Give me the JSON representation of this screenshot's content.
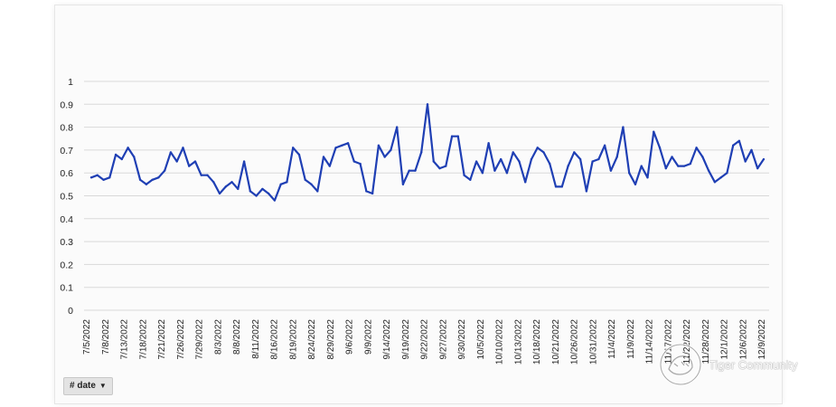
{
  "chart_data": {
    "type": "line",
    "title": "",
    "xlabel": "",
    "ylabel": "",
    "ylim": [
      0,
      1
    ],
    "yticks": [
      "0",
      "0.1",
      "0.2",
      "0.3",
      "0.4",
      "0.5",
      "0.6",
      "0.7",
      "0.8",
      "0.9",
      "1"
    ],
    "grid": true,
    "legend": "none",
    "line_color": "#1f3fb4",
    "x_tick_labels": [
      "7/5/2022",
      "7/8/2022",
      "7/13/2022",
      "7/18/2022",
      "7/21/2022",
      "7/26/2022",
      "7/29/2022",
      "8/3/2022",
      "8/8/2022",
      "8/11/2022",
      "8/16/2022",
      "8/19/2022",
      "8/24/2022",
      "8/29/2022",
      "9/6/2022",
      "9/9/2022",
      "9/14/2022",
      "9/19/2022",
      "9/22/2022",
      "9/27/2022",
      "9/30/2022",
      "10/5/2022",
      "10/10/2022",
      "10/13/2022",
      "10/18/2022",
      "10/21/2022",
      "10/26/2022",
      "10/31/2022",
      "11/4/2022",
      "11/9/2022",
      "11/14/2022",
      "11/17/2022",
      "11/22/2022",
      "11/28/2022",
      "12/1/2022",
      "12/6/2022",
      "12/9/2022"
    ],
    "values": [
      0.58,
      0.59,
      0.57,
      0.58,
      0.68,
      0.66,
      0.71,
      0.67,
      0.57,
      0.55,
      0.57,
      0.58,
      0.61,
      0.69,
      0.65,
      0.71,
      0.63,
      0.65,
      0.59,
      0.59,
      0.56,
      0.51,
      0.54,
      0.56,
      0.53,
      0.65,
      0.52,
      0.5,
      0.53,
      0.51,
      0.48,
      0.55,
      0.56,
      0.71,
      0.68,
      0.57,
      0.55,
      0.52,
      0.67,
      0.63,
      0.71,
      0.72,
      0.73,
      0.65,
      0.64,
      0.52,
      0.51,
      0.72,
      0.67,
      0.7,
      0.8,
      0.55,
      0.61,
      0.61,
      0.69,
      0.9,
      0.65,
      0.62,
      0.63,
      0.76,
      0.76,
      0.59,
      0.57,
      0.65,
      0.6,
      0.73,
      0.61,
      0.66,
      0.6,
      0.69,
      0.65,
      0.56,
      0.66,
      0.71,
      0.69,
      0.64,
      0.54,
      0.54,
      0.63,
      0.69,
      0.66,
      0.52,
      0.65,
      0.66,
      0.72,
      0.61,
      0.67,
      0.8,
      0.6,
      0.55,
      0.63,
      0.58,
      0.78,
      0.71,
      0.62,
      0.67,
      0.63,
      0.63,
      0.64,
      0.71,
      0.67,
      0.61,
      0.56,
      0.58,
      0.6,
      0.72,
      0.74,
      0.65,
      0.7,
      0.62,
      0.66
    ]
  },
  "field_button": {
    "label": "# date",
    "caret": "▼"
  },
  "watermark": {
    "text": "Tiger Community",
    "icon": "tiger-logo-icon"
  }
}
